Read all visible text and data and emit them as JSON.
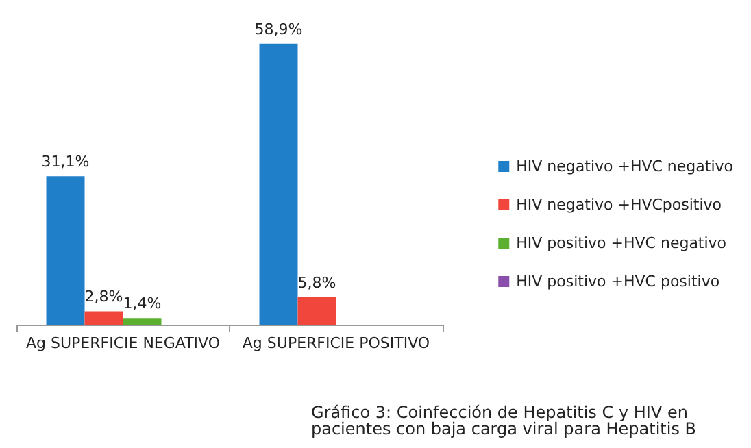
{
  "chart_data": {
    "type": "bar",
    "categories": [
      "Ag SUPERFICIE NEGATIVO",
      "Ag SUPERFICIE POSITIVO"
    ],
    "series": [
      {
        "name": "HIV negativo +HVC negativo",
        "color": "#1f7fc8",
        "values": [
          31.1,
          58.9
        ],
        "value_labels": [
          "31,1%",
          "58,9%"
        ]
      },
      {
        "name": "HIV negativo +HVCpositivo",
        "color": "#f0463c",
        "values": [
          2.8,
          5.8
        ],
        "value_labels": [
          "2,8%",
          "5,8%"
        ]
      },
      {
        "name": "HIV positivo +HVC negativo",
        "color": "#5cb030",
        "values": [
          1.4,
          0
        ],
        "value_labels": [
          "1,4%",
          null
        ]
      },
      {
        "name": "HIV positivo +HVC positivo",
        "color": "#8a4faa",
        "values": [
          0,
          0
        ],
        "value_labels": [
          null,
          null
        ]
      }
    ],
    "legend": "right",
    "annotations": [
      "Gráfico 3: Coinfección de Hepatitis C y HIV en pacientes con baja carga viral para Hepatitis B"
    ]
  }
}
